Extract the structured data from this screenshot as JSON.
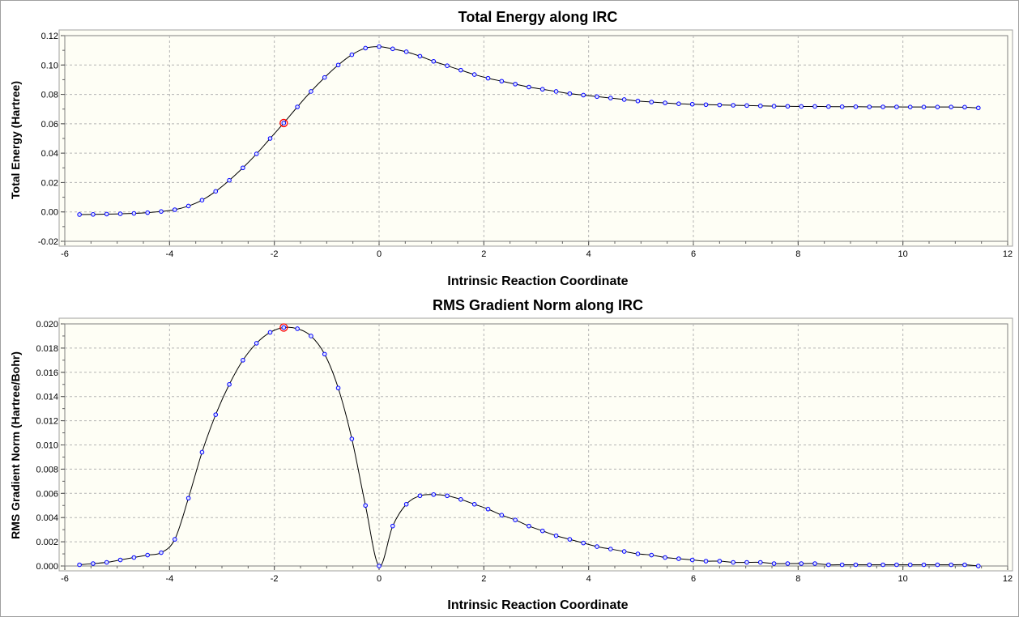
{
  "chart_data": [
    {
      "type": "line",
      "title": "Total Energy along IRC",
      "xlabel": "Intrinsic Reaction Coordinate",
      "ylabel": "Total Energy (Hartree)",
      "xlim": [
        -6,
        12
      ],
      "ylim": [
        -0.02,
        0.12
      ],
      "x_ticks": [
        "-6",
        "-4",
        "-2",
        "0",
        "2",
        "4",
        "6",
        "8",
        "10",
        "12"
      ],
      "y_ticks": [
        "-0.02",
        "0.00",
        "0.02",
        "0.04",
        "0.06",
        "0.08",
        "0.10",
        "0.12"
      ],
      "grid": true,
      "highlight_x": -1.8,
      "x": [
        -5.72,
        -5.46,
        -5.2,
        -4.94,
        -4.68,
        -4.42,
        -4.16,
        -3.9,
        -3.64,
        -3.38,
        -3.12,
        -2.86,
        -2.6,
        -2.34,
        -2.08,
        -1.82,
        -1.56,
        -1.3,
        -1.04,
        -0.78,
        -0.52,
        -0.26,
        0.0,
        0.26,
        0.52,
        0.78,
        1.04,
        1.3,
        1.56,
        1.82,
        2.08,
        2.34,
        2.6,
        2.86,
        3.12,
        3.38,
        3.64,
        3.9,
        4.16,
        4.42,
        4.68,
        4.94,
        5.2,
        5.46,
        5.72,
        5.98,
        6.24,
        6.5,
        6.76,
        7.02,
        7.28,
        7.54,
        7.8,
        8.06,
        8.32,
        8.58,
        8.84,
        9.1,
        9.36,
        9.62,
        9.88,
        10.14,
        10.4,
        10.66,
        10.92,
        11.18,
        11.44
      ],
      "y": [
        -0.0018,
        -0.0017,
        -0.0015,
        -0.0013,
        -0.001,
        -0.0005,
        0.0003,
        0.0015,
        0.004,
        0.008,
        0.014,
        0.0215,
        0.03,
        0.0395,
        0.05,
        0.0605,
        0.0715,
        0.082,
        0.0915,
        0.1,
        0.107,
        0.1115,
        0.1125,
        0.111,
        0.109,
        0.106,
        0.1025,
        0.0995,
        0.0965,
        0.0935,
        0.091,
        0.089,
        0.087,
        0.085,
        0.0835,
        0.082,
        0.0805,
        0.0795,
        0.0785,
        0.0775,
        0.0765,
        0.0755,
        0.0748,
        0.0742,
        0.0736,
        0.0733,
        0.073,
        0.0728,
        0.0726,
        0.0724,
        0.0722,
        0.072,
        0.0719,
        0.0718,
        0.0718,
        0.0717,
        0.0716,
        0.0716,
        0.0715,
        0.0715,
        0.0715,
        0.0714,
        0.0714,
        0.0714,
        0.0714,
        0.0713,
        0.0708
      ]
    },
    {
      "type": "line",
      "title": "RMS Gradient Norm along IRC",
      "xlabel": "Intrinsic Reaction Coordinate",
      "ylabel": "RMS Gradient Norm (Hartree/Bohr)",
      "xlim": [
        -6,
        12
      ],
      "ylim": [
        0,
        0.02
      ],
      "x_ticks": [
        "-6",
        "-4",
        "-2",
        "0",
        "2",
        "4",
        "6",
        "8",
        "10",
        "12"
      ],
      "y_ticks": [
        "0.000",
        "0.002",
        "0.004",
        "0.006",
        "0.008",
        "0.010",
        "0.012",
        "0.014",
        "0.016",
        "0.018",
        "0.020"
      ],
      "grid": true,
      "highlight_x": -1.8,
      "x": [
        -5.72,
        -5.46,
        -5.2,
        -4.94,
        -4.68,
        -4.42,
        -4.16,
        -3.9,
        -3.64,
        -3.38,
        -3.12,
        -2.86,
        -2.6,
        -2.34,
        -2.08,
        -1.82,
        -1.56,
        -1.3,
        -1.04,
        -0.78,
        -0.52,
        -0.26,
        0.0,
        0.26,
        0.52,
        0.78,
        1.04,
        1.3,
        1.56,
        1.82,
        2.08,
        2.34,
        2.6,
        2.86,
        3.12,
        3.38,
        3.64,
        3.9,
        4.16,
        4.42,
        4.68,
        4.94,
        5.2,
        5.46,
        5.72,
        5.98,
        6.24,
        6.5,
        6.76,
        7.02,
        7.28,
        7.54,
        7.8,
        8.06,
        8.32,
        8.58,
        8.84,
        9.1,
        9.36,
        9.62,
        9.88,
        10.14,
        10.4,
        10.66,
        10.92,
        11.18,
        11.44
      ],
      "y": [
        0.0001,
        0.0002,
        0.0003,
        0.0005,
        0.0007,
        0.0009,
        0.0011,
        0.0022,
        0.0056,
        0.0094,
        0.0125,
        0.015,
        0.017,
        0.0184,
        0.0193,
        0.0197,
        0.0196,
        0.019,
        0.0175,
        0.0147,
        0.0105,
        0.005,
        0.0,
        0.0033,
        0.0051,
        0.0058,
        0.0059,
        0.0058,
        0.0055,
        0.0051,
        0.0047,
        0.0042,
        0.0038,
        0.0033,
        0.0029,
        0.0025,
        0.0022,
        0.0019,
        0.0016,
        0.0014,
        0.0012,
        0.001,
        0.0009,
        0.0007,
        0.0006,
        0.0005,
        0.0004,
        0.0004,
        0.0003,
        0.0003,
        0.0003,
        0.0002,
        0.0002,
        0.0002,
        0.0002,
        0.0001,
        0.0001,
        0.0001,
        0.0001,
        0.0001,
        0.0001,
        0.0001,
        0.0001,
        0.0001,
        0.0001,
        0.0001,
        0.0
      ]
    }
  ],
  "colors": {
    "plot_background": "#fefef5",
    "grid": "#b4b4b4",
    "line": "#000000",
    "marker_fill": "#dfe3ff",
    "marker_stroke": "#0000ff",
    "highlight": "#ff0000"
  }
}
